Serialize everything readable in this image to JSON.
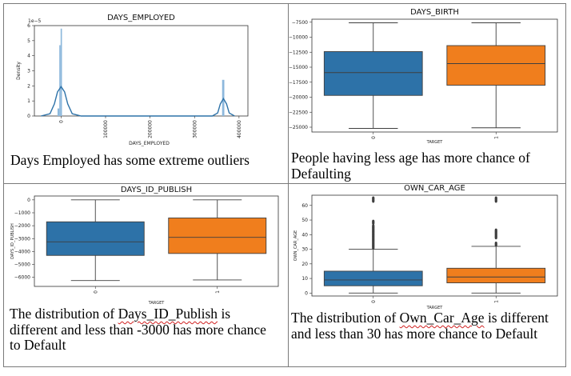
{
  "colors": {
    "blue": "#2d72a8",
    "orange": "#f07e1d",
    "hist": "#8db8dc",
    "kde": "#2d72a8"
  },
  "panels": {
    "p1": {
      "caption": "Days Employed has some extreme outliers"
    },
    "p2": {
      "caption": "People having less age has more chance of Defaulting"
    },
    "p3": {
      "caption_before": "The distribution of ",
      "caption_squiggle": "Days_ID_Publish",
      "caption_after": " is different and less than -3000 has more chance to Default"
    },
    "p4": {
      "caption_before": "The distribution of ",
      "caption_squiggle": "Own_Car_Age",
      "caption_after": " is different and less than 30 has more chance to Default"
    }
  },
  "chart_data": [
    {
      "type": "histogram",
      "title": "DAYS_EMPLOYED",
      "xlabel": "DAYS_EMPLOYED",
      "ylabel": "Density",
      "y_multiplier": "1e−5",
      "xlim": [
        -60000,
        420000
      ],
      "ylim": [
        0,
        6
      ],
      "xticks": [
        0,
        100000,
        200000,
        300000,
        400000
      ],
      "xtick_labels": [
        "0",
        "100000",
        "200000",
        "300000",
        "400000"
      ],
      "yticks": [
        0,
        1,
        2,
        3,
        4,
        5,
        6
      ],
      "bins": [
        {
          "x0": -8000,
          "x1": -4000,
          "density": 0.5
        },
        {
          "x0": -4000,
          "x1": -1000,
          "density": 4.7
        },
        {
          "x0": -1000,
          "x1": 2000,
          "density": 5.8
        },
        {
          "x0": 362000,
          "x1": 367000,
          "density": 2.4
        }
      ],
      "kde": [
        [
          -45000,
          0
        ],
        [
          -25000,
          0.15
        ],
        [
          -15000,
          0.8
        ],
        [
          -8000,
          1.6
        ],
        [
          0,
          1.95
        ],
        [
          8000,
          1.6
        ],
        [
          15000,
          0.8
        ],
        [
          25000,
          0.15
        ],
        [
          45000,
          0
        ],
        [
          340000,
          0
        ],
        [
          352000,
          0.2
        ],
        [
          358000,
          0.8
        ],
        [
          365000,
          1.15
        ],
        [
          372000,
          0.8
        ],
        [
          378000,
          0.2
        ],
        [
          390000,
          0
        ]
      ]
    },
    {
      "type": "box",
      "title": "DAYS_BIRTH",
      "xlabel": "TARGET",
      "ylabel": "",
      "ylim": [
        -25800,
        -7000
      ],
      "yticks": [
        -25000,
        -22500,
        -20000,
        -17500,
        -15000,
        -12500,
        -10000,
        -7500
      ],
      "ytick_labels": [
        "−25000",
        "−22500",
        "−20000",
        "−17500",
        "−15000",
        "−12500",
        "−10000",
        "−7500"
      ],
      "categories": [
        "0",
        "1"
      ],
      "boxes": [
        {
          "whislo": -25200,
          "q1": -19700,
          "med": -15900,
          "q3": -12400,
          "whishi": -7600,
          "fliers": []
        },
        {
          "whislo": -25100,
          "q1": -18000,
          "med": -14400,
          "q3": -11400,
          "whishi": -7600,
          "fliers": []
        }
      ]
    },
    {
      "type": "box",
      "title": "DAYS_ID_PUBLISH",
      "xlabel": "TARGET",
      "ylabel": "DAYS_ID_PUBLISH",
      "ylim": [
        -6700,
        300
      ],
      "yticks": [
        -6000,
        -5000,
        -4000,
        -3000,
        -2000,
        -1000,
        0
      ],
      "ytick_labels": [
        "−6000",
        "−5000",
        "−4000",
        "−3000",
        "−2000",
        "−1000",
        "0"
      ],
      "categories": [
        "0",
        "1"
      ],
      "boxes": [
        {
          "whislo": -6250,
          "q1": -4300,
          "med": -3250,
          "q3": -1700,
          "whishi": 0,
          "fliers": []
        },
        {
          "whislo": -6200,
          "q1": -4150,
          "med": -2900,
          "q3": -1400,
          "whishi": 0,
          "fliers": []
        }
      ]
    },
    {
      "type": "box",
      "title": "OWN_CAR_AGE",
      "xlabel": "TARGET",
      "ylabel": "OWN_CAR_AGE",
      "ylim": [
        -2,
        67
      ],
      "yticks": [
        0,
        10,
        20,
        30,
        40,
        50,
        60
      ],
      "ytick_labels": [
        "0",
        "10",
        "20",
        "30",
        "40",
        "50",
        "60"
      ],
      "categories": [
        "0",
        "1"
      ],
      "boxes": [
        {
          "whislo": 0,
          "q1": 5,
          "med": 9,
          "q3": 15,
          "whishi": 30,
          "fliers": [
            31,
            32,
            33,
            34,
            35,
            36,
            37,
            38,
            39,
            40,
            41,
            42,
            43,
            44,
            45,
            46,
            48,
            49,
            63,
            64,
            65
          ]
        },
        {
          "whislo": 0,
          "q1": 7,
          "med": 11,
          "q3": 17,
          "whishi": 32,
          "fliers": [
            33,
            34,
            38,
            39,
            40,
            41,
            42,
            43,
            63,
            64,
            65
          ]
        }
      ]
    }
  ]
}
